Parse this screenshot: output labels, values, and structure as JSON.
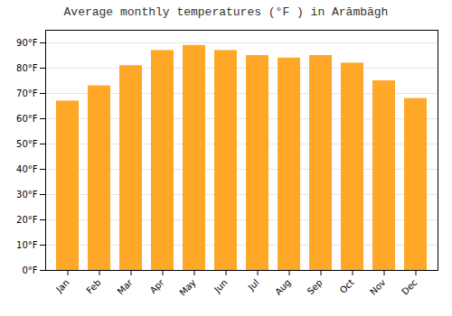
{
  "chart_data": {
    "type": "bar",
    "title": "Average monthly temperatures (°F ) in Arāmbāgh",
    "categories": [
      "Jan",
      "Feb",
      "Mar",
      "Apr",
      "May",
      "Jun",
      "Jul",
      "Aug",
      "Sep",
      "Oct",
      "Nov",
      "Dec"
    ],
    "values": [
      67,
      73,
      81,
      87,
      89,
      87,
      85,
      84,
      85,
      82,
      75,
      68
    ],
    "color": "#FFA726",
    "ylim": [
      0,
      95
    ],
    "yticks": [
      {
        "value": 0,
        "label": "0°F"
      },
      {
        "value": 10,
        "label": "10°F"
      },
      {
        "value": 20,
        "label": "20°F"
      },
      {
        "value": 30,
        "label": "30°F"
      },
      {
        "value": 40,
        "label": "40°F"
      },
      {
        "value": 50,
        "label": "50°F"
      },
      {
        "value": 60,
        "label": "60°F"
      },
      {
        "value": 70,
        "label": "70°F"
      },
      {
        "value": 80,
        "label": "80°F"
      },
      {
        "value": 90,
        "label": "90°F"
      }
    ],
    "grid": true
  }
}
